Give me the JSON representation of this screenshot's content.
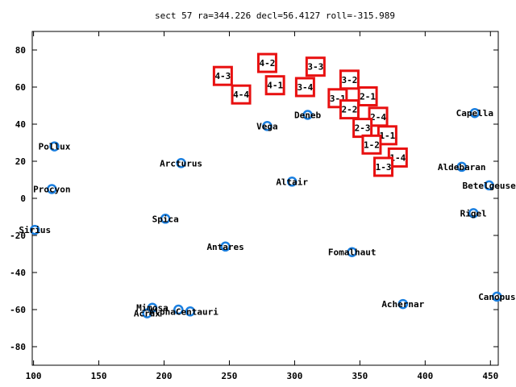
{
  "chart_data": {
    "type": "scatter",
    "title": "sect 57 ra=344.226 decl=56.4127 roll=-315.989",
    "xlim": [
      99,
      456
    ],
    "ylim": [
      -90,
      90
    ],
    "xticks": [
      100,
      150,
      200,
      250,
      300,
      350,
      400,
      450
    ],
    "yticks": [
      -80,
      -60,
      -40,
      -20,
      0,
      20,
      40,
      60,
      80
    ],
    "grid": false,
    "colors": {
      "stars": "#1a7fe0",
      "boxes": "#e81010",
      "axis": "#000000"
    },
    "stars": [
      {
        "name": "Pollux",
        "x": 116,
        "y": 28
      },
      {
        "name": "Procyon",
        "x": 114,
        "y": 5
      },
      {
        "name": "Sirius",
        "x": 101,
        "y": -17
      },
      {
        "name": "Arcturus",
        "x": 213,
        "y": 19
      },
      {
        "name": "Spica",
        "x": 201,
        "y": -11
      },
      {
        "name": "Antares",
        "x": 247,
        "y": -26
      },
      {
        "name": "Vega",
        "x": 279,
        "y": 39
      },
      {
        "name": "Deneb",
        "x": 310,
        "y": 45
      },
      {
        "name": "Altair",
        "x": 298,
        "y": 9
      },
      {
        "name": "Fomalhaut",
        "x": 344,
        "y": -29
      },
      {
        "name": "Achernar",
        "x": 383,
        "y": -57
      },
      {
        "name": "Capella",
        "x": 438,
        "y": 46
      },
      {
        "name": "Aldebaran",
        "x": 428,
        "y": 17
      },
      {
        "name": "Betelgeuse",
        "x": 449,
        "y": 7
      },
      {
        "name": "Rigel",
        "x": 437,
        "y": -8
      },
      {
        "name": "Canopus",
        "x": 455,
        "y": -53
      },
      {
        "name": "Mimosa",
        "x": 191,
        "y": -59
      },
      {
        "name": "Acrux",
        "x": 187,
        "y": -62
      },
      {
        "name": "Hadar",
        "x": 211,
        "y": -60
      },
      {
        "name": "AlphaCentauri",
        "x": 220,
        "y": -61
      }
    ],
    "star_label_texts": [
      {
        "text": "Pollux",
        "x": 116,
        "y": 28
      },
      {
        "text": "Procyon",
        "x": 114,
        "y": 5
      },
      {
        "text": "Sirius",
        "x": 101,
        "y": -17
      },
      {
        "text": "Arcturus",
        "x": 213,
        "y": 19
      },
      {
        "text": "Spica",
        "x": 201,
        "y": -11
      },
      {
        "text": "Antares",
        "x": 247,
        "y": -26
      },
      {
        "text": "Vega",
        "x": 279,
        "y": 39
      },
      {
        "text": "Deneb",
        "x": 310,
        "y": 45
      },
      {
        "text": "Altair",
        "x": 298,
        "y": 9
      },
      {
        "text": "Fomalhaut",
        "x": 344,
        "y": -29
      },
      {
        "text": "Achernar",
        "x": 383,
        "y": -57
      },
      {
        "text": "Capella",
        "x": 438,
        "y": 46
      },
      {
        "text": "Aldebaran",
        "x": 428,
        "y": 17
      },
      {
        "text": "Betelgeuse",
        "x": 449,
        "y": 7
      },
      {
        "text": "Rigel",
        "x": 437,
        "y": -8
      },
      {
        "text": "Canopus",
        "x": 455,
        "y": -53
      },
      {
        "text": "Mimosa",
        "x": 191,
        "y": -59
      },
      {
        "text": "Acrux",
        "x": 187,
        "y": -62
      },
      {
        "text": "AlphaCentauri",
        "x": 215,
        "y": -61
      }
    ],
    "boxes": [
      {
        "label": "4-3",
        "x": 245,
        "y": 66
      },
      {
        "label": "4-2",
        "x": 279,
        "y": 73
      },
      {
        "label": "3-3",
        "x": 316,
        "y": 71
      },
      {
        "label": "4-4",
        "x": 259,
        "y": 56
      },
      {
        "label": "4-1",
        "x": 285,
        "y": 61
      },
      {
        "label": "3-4",
        "x": 308,
        "y": 60
      },
      {
        "label": "3-2",
        "x": 342,
        "y": 64
      },
      {
        "label": "3-1",
        "x": 333,
        "y": 54
      },
      {
        "label": "2-1",
        "x": 356,
        "y": 55
      },
      {
        "label": "2-2",
        "x": 342,
        "y": 48
      },
      {
        "label": "2-4",
        "x": 364,
        "y": 44
      },
      {
        "label": "2-3",
        "x": 352,
        "y": 38
      },
      {
        "label": "1-1",
        "x": 371,
        "y": 34
      },
      {
        "label": "1-2",
        "x": 359,
        "y": 29
      },
      {
        "label": "1-4",
        "x": 379,
        "y": 22
      },
      {
        "label": "1-3",
        "x": 368,
        "y": 17
      }
    ]
  }
}
